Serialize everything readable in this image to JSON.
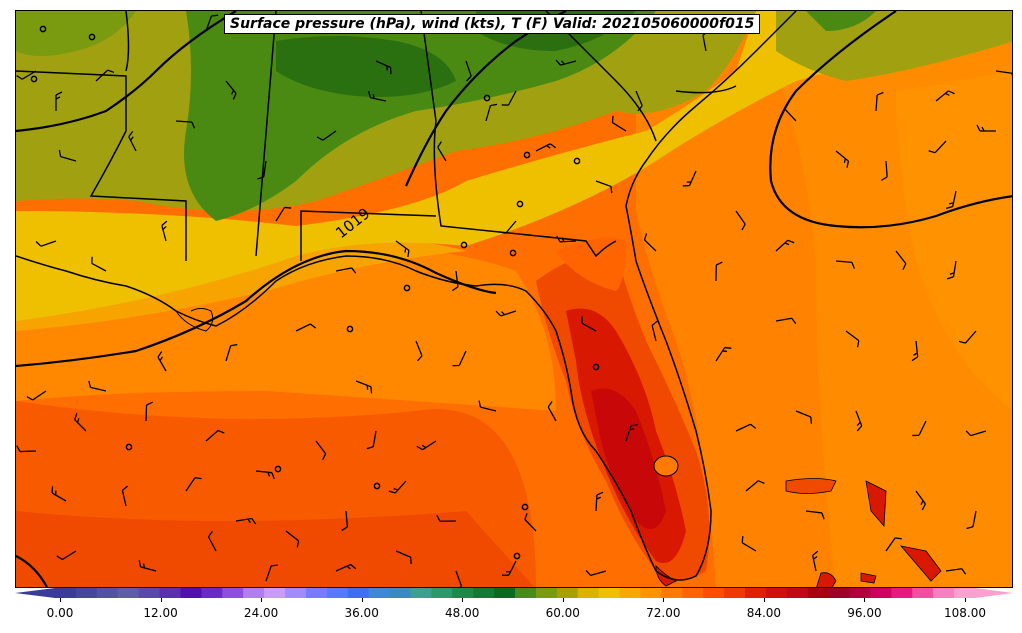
{
  "title": "Surface pressure (hPa), wind (kts), T (F) Valid: 202105060000f015",
  "isobar_labels": [
    "1019"
  ],
  "colorbar": {
    "ticks": [
      "0.00",
      "12.00",
      "24.00",
      "36.00",
      "48.00",
      "60.00",
      "72.00",
      "84.00",
      "96.00",
      "108.00"
    ],
    "colors": [
      "#3b3b9a",
      "#46469f",
      "#5252a3",
      "#5e5ea8",
      "#5a48ad",
      "#5a2fb0",
      "#5010b0",
      "#6a2ac8",
      "#8c4fe0",
      "#b07ef0",
      "#c89cf8",
      "#a08cff",
      "#7a7aff",
      "#5878ff",
      "#3c70f0",
      "#3e88d8",
      "#3a8cc0",
      "#3aa090",
      "#2a9a6a",
      "#1e8a4a",
      "#127a34",
      "#0a6a22",
      "#4a8a18",
      "#7a9a10",
      "#a8a000",
      "#d8b400",
      "#f0c000",
      "#f8a800",
      "#ff9400",
      "#ff7a00",
      "#ff6400",
      "#ff4e00",
      "#f03a00",
      "#e02000",
      "#d01010",
      "#c00818",
      "#a80010",
      "#9a0028",
      "#b00040",
      "#d00060",
      "#e81880",
      "#f050a0",
      "#f880c0",
      "#fca0d0"
    ]
  },
  "map": {
    "fill_colors": {
      "dark_green": "#2a7010",
      "green": "#4a8a12",
      "olive": "#a0a010",
      "yellow": "#eec000",
      "orange_light": "#f8a400",
      "orange": "#ff8a00",
      "orange_dark": "#ff6e00",
      "red_orange": "#f04a00",
      "red": "#d81800",
      "deep_red": "#c80808"
    }
  }
}
